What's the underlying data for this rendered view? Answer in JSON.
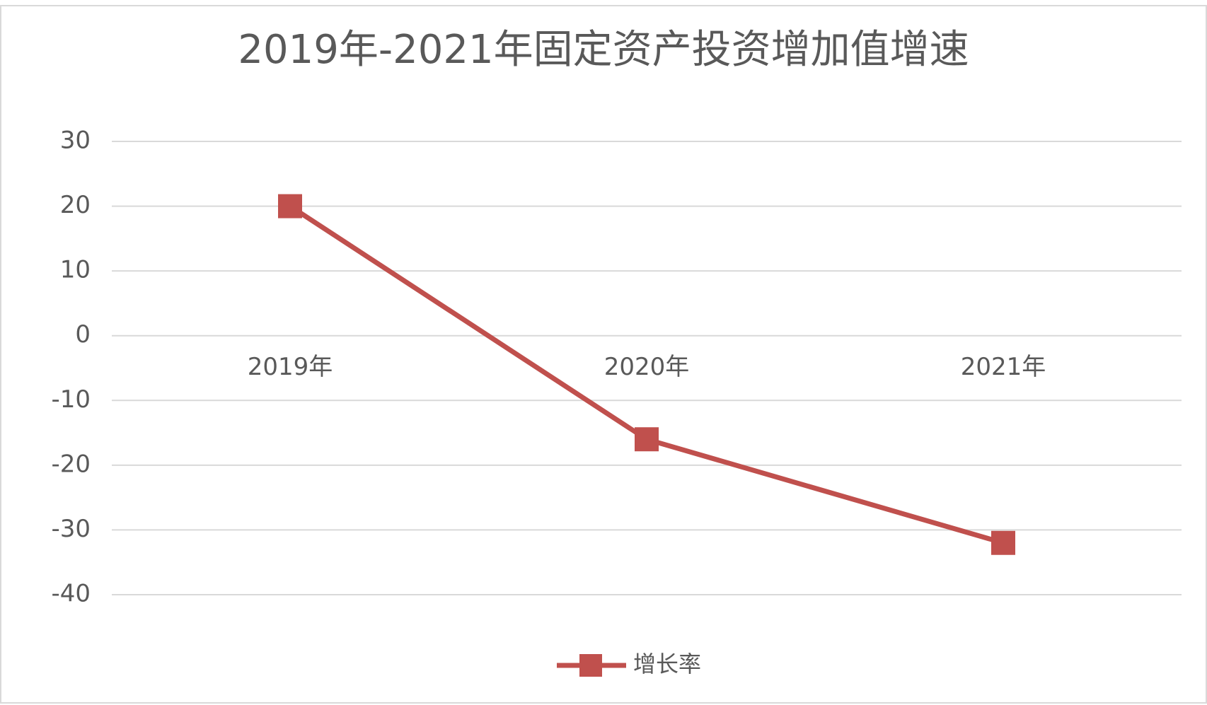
{
  "chart_data": {
    "type": "line",
    "title": "2019年-2021年固定资产投资增加值增速",
    "categories": [
      "2019年",
      "2020年",
      "2021年"
    ],
    "series": [
      {
        "name": "增长率",
        "color": "#c0504d",
        "values": [
          20,
          -16,
          -32
        ]
      }
    ],
    "ylim": [
      -40,
      30
    ],
    "yticks": [
      -40,
      -30,
      -20,
      -10,
      0,
      10,
      20,
      30
    ],
    "grid": true,
    "legend": "bottom"
  }
}
